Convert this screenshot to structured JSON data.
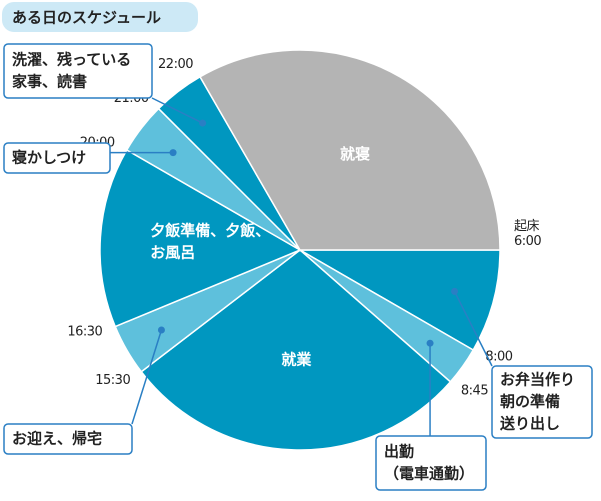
{
  "chart_data": {
    "type": "pie",
    "title": "ある日のスケジュール",
    "categories": [
      [
        "お弁当作り",
        "朝の準備",
        "送り出し"
      ],
      [
        "出勤",
        "（電車通勤）"
      ],
      [
        "就業"
      ],
      [
        "お迎え、帰宅"
      ],
      [
        "夕飯準備、夕飯、",
        "お風呂"
      ],
      [
        "寝かしつけ"
      ],
      [
        "洗濯、残っている",
        "家事、読書"
      ],
      [
        "就寝"
      ]
    ],
    "values": [
      2,
      0.75,
      6.75,
      1,
      3.5,
      1,
      1,
      8
    ],
    "boundary_labels": [
      [
        "起床",
        "6:00"
      ],
      [
        "8:00"
      ],
      [
        "8:45"
      ],
      [
        "15:30"
      ],
      [
        "16:30"
      ],
      [
        "20:00"
      ],
      [
        "21:00"
      ],
      [
        "22:00"
      ]
    ],
    "colors": [
      "#0097c0",
      "#5ec0dc",
      "#0097c0",
      "#5ec0dc",
      "#0097c0",
      "#5ec0dc",
      "#0097c0",
      "#b4b4b4"
    ]
  }
}
